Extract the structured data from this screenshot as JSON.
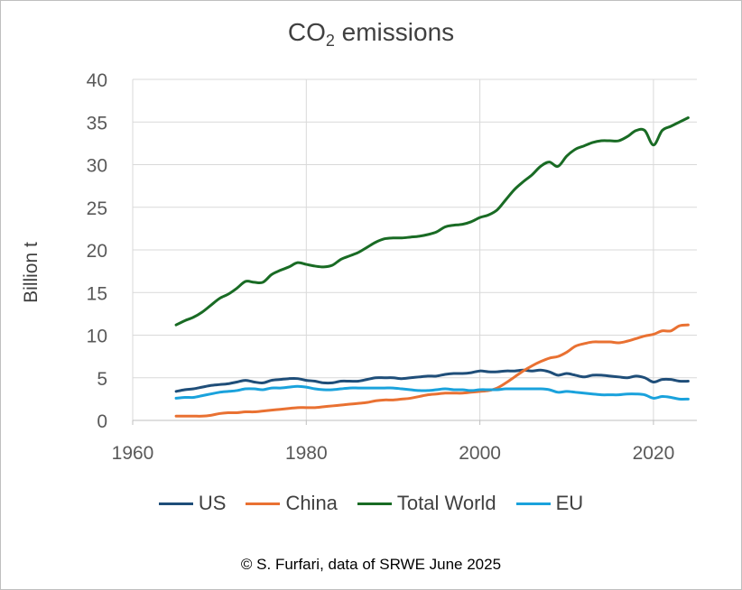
{
  "chart_data": {
    "type": "line",
    "title_main": "CO",
    "title_sub": "2",
    "title_rest": " emissions",
    "ylabel": "Billion t",
    "xlim": [
      1960,
      2025
    ],
    "ylim": [
      0,
      40
    ],
    "x_ticks": [
      1960,
      1980,
      2000,
      2020
    ],
    "y_ticks": [
      0,
      5,
      10,
      15,
      20,
      25,
      30,
      35,
      40
    ],
    "grid": true,
    "legend_position": "bottom",
    "credit": "© S. Furfari, data of  SRWE June 2025",
    "x": [
      1965,
      1966,
      1967,
      1968,
      1969,
      1970,
      1971,
      1972,
      1973,
      1974,
      1975,
      1976,
      1977,
      1978,
      1979,
      1980,
      1981,
      1982,
      1983,
      1984,
      1985,
      1986,
      1987,
      1988,
      1989,
      1990,
      1991,
      1992,
      1993,
      1994,
      1995,
      1996,
      1997,
      1998,
      1999,
      2000,
      2001,
      2002,
      2003,
      2004,
      2005,
      2006,
      2007,
      2008,
      2009,
      2010,
      2011,
      2012,
      2013,
      2014,
      2015,
      2016,
      2017,
      2018,
      2019,
      2020,
      2021,
      2022,
      2023,
      2024
    ],
    "series": [
      {
        "name": "US",
        "color": "#1f4e79",
        "values": [
          3.4,
          3.6,
          3.7,
          3.9,
          4.1,
          4.2,
          4.3,
          4.5,
          4.7,
          4.5,
          4.4,
          4.7,
          4.8,
          4.9,
          4.9,
          4.7,
          4.6,
          4.4,
          4.4,
          4.6,
          4.6,
          4.6,
          4.8,
          5.0,
          5.0,
          5.0,
          4.9,
          5.0,
          5.1,
          5.2,
          5.2,
          5.4,
          5.5,
          5.5,
          5.6,
          5.8,
          5.7,
          5.7,
          5.8,
          5.8,
          5.9,
          5.8,
          5.9,
          5.7,
          5.3,
          5.5,
          5.3,
          5.1,
          5.3,
          5.3,
          5.2,
          5.1,
          5.0,
          5.2,
          5.0,
          4.5,
          4.8,
          4.8,
          4.6,
          4.6
        ]
      },
      {
        "name": "China",
        "color": "#e97132",
        "values": [
          0.5,
          0.5,
          0.5,
          0.5,
          0.6,
          0.8,
          0.9,
          0.9,
          1.0,
          1.0,
          1.1,
          1.2,
          1.3,
          1.4,
          1.5,
          1.5,
          1.5,
          1.6,
          1.7,
          1.8,
          1.9,
          2.0,
          2.1,
          2.3,
          2.4,
          2.4,
          2.5,
          2.6,
          2.8,
          3.0,
          3.1,
          3.2,
          3.2,
          3.2,
          3.3,
          3.4,
          3.5,
          3.8,
          4.4,
          5.1,
          5.8,
          6.4,
          6.9,
          7.3,
          7.5,
          8.0,
          8.7,
          9.0,
          9.2,
          9.2,
          9.2,
          9.1,
          9.3,
          9.6,
          9.9,
          10.1,
          10.5,
          10.5,
          11.1,
          11.2
        ]
      },
      {
        "name": "Total World",
        "color": "#196b24",
        "values": [
          11.2,
          11.7,
          12.1,
          12.7,
          13.5,
          14.3,
          14.8,
          15.5,
          16.3,
          16.2,
          16.2,
          17.1,
          17.6,
          18.0,
          18.5,
          18.3,
          18.1,
          18.0,
          18.2,
          18.9,
          19.3,
          19.7,
          20.3,
          20.9,
          21.3,
          21.4,
          21.4,
          21.5,
          21.6,
          21.8,
          22.1,
          22.7,
          22.9,
          23.0,
          23.3,
          23.8,
          24.1,
          24.7,
          25.9,
          27.1,
          28.0,
          28.8,
          29.8,
          30.3,
          29.8,
          31.0,
          31.8,
          32.2,
          32.6,
          32.8,
          32.8,
          32.8,
          33.3,
          34.0,
          34.0,
          32.3,
          34.0,
          34.5,
          35.0,
          35.5
        ]
      },
      {
        "name": "EU",
        "color": "#1aa2dc",
        "values": [
          2.6,
          2.7,
          2.7,
          2.9,
          3.1,
          3.3,
          3.4,
          3.5,
          3.7,
          3.7,
          3.6,
          3.8,
          3.8,
          3.9,
          4.0,
          3.9,
          3.7,
          3.6,
          3.6,
          3.7,
          3.8,
          3.8,
          3.8,
          3.8,
          3.8,
          3.8,
          3.7,
          3.6,
          3.5,
          3.5,
          3.6,
          3.7,
          3.6,
          3.6,
          3.5,
          3.6,
          3.6,
          3.6,
          3.7,
          3.7,
          3.7,
          3.7,
          3.7,
          3.6,
          3.3,
          3.4,
          3.3,
          3.2,
          3.1,
          3.0,
          3.0,
          3.0,
          3.1,
          3.1,
          3.0,
          2.6,
          2.8,
          2.7,
          2.5,
          2.5
        ]
      }
    ]
  }
}
